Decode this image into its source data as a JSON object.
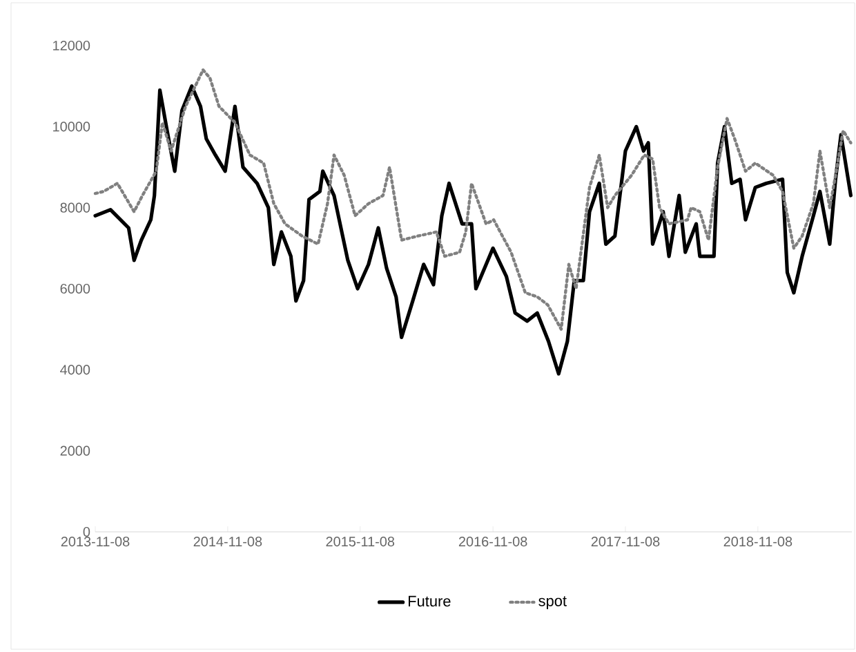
{
  "chart_data": {
    "type": "line",
    "xlim": [
      "2013-11-08",
      "2019-07-25"
    ],
    "xticks": [
      "2013-11-08",
      "2014-11-08",
      "2015-11-08",
      "2016-11-08",
      "2017-11-08",
      "2018-11-08"
    ],
    "ylim": [
      0,
      12000
    ],
    "yticks": [
      0,
      2000,
      4000,
      6000,
      8000,
      10000,
      12000
    ],
    "grid": false,
    "legend": "bottom",
    "marker": "none",
    "series": [
      {
        "name": "Future",
        "color": "#000000",
        "line_style": "solid",
        "x": [
          "2013-11-08",
          "2013-12-20",
          "2014-02-08",
          "2014-02-23",
          "2014-03-15",
          "2014-04-10",
          "2014-04-20",
          "2014-05-05",
          "2014-05-25",
          "2014-06-15",
          "2014-07-05",
          "2014-08-01",
          "2014-08-25",
          "2014-09-10",
          "2014-10-05",
          "2014-11-01",
          "2014-11-28",
          "2014-12-20",
          "2015-01-28",
          "2015-02-28",
          "2015-03-15",
          "2015-04-05",
          "2015-05-01",
          "2015-05-15",
          "2015-06-05",
          "2015-06-20",
          "2015-07-20",
          "2015-07-28",
          "2015-08-28",
          "2015-10-05",
          "2015-11-01",
          "2015-12-01",
          "2015-12-28",
          "2016-01-20",
          "2016-02-15",
          "2016-03-01",
          "2016-04-01",
          "2016-05-01",
          "2016-05-28",
          "2016-06-20",
          "2016-07-10",
          "2016-08-15",
          "2016-09-10",
          "2016-09-22",
          "2016-11-08",
          "2016-12-15",
          "2017-01-08",
          "2017-02-10",
          "2017-03-10",
          "2017-04-10",
          "2017-05-08",
          "2017-06-01",
          "2017-06-20",
          "2017-07-15",
          "2017-08-01",
          "2017-08-28",
          "2017-09-15",
          "2017-10-10",
          "2017-11-08",
          "2017-12-08",
          "2017-12-28",
          "2018-01-10",
          "2018-01-22",
          "2018-02-20",
          "2018-03-08",
          "2018-04-05",
          "2018-04-22",
          "2018-05-22",
          "2018-06-01",
          "2018-07-10",
          "2018-07-20",
          "2018-08-08",
          "2018-08-28",
          "2018-09-20",
          "2018-10-05",
          "2018-11-01",
          "2018-12-01",
          "2019-01-15",
          "2019-01-28",
          "2019-02-15",
          "2019-03-10",
          "2019-04-10",
          "2019-04-28",
          "2019-05-25",
          "2019-06-10",
          "2019-06-25",
          "2019-07-22"
        ],
        "values": [
          7800,
          7950,
          7500,
          6700,
          7200,
          7700,
          8300,
          10900,
          9900,
          8900,
          10400,
          11000,
          10500,
          9700,
          9300,
          8900,
          10500,
          9000,
          8600,
          8000,
          6600,
          7400,
          6800,
          5700,
          6200,
          8200,
          8400,
          8900,
          8300,
          6700,
          6000,
          6600,
          7500,
          6500,
          5800,
          4800,
          5700,
          6600,
          6100,
          7800,
          8600,
          7600,
          7600,
          6000,
          7000,
          6300,
          5400,
          5200,
          5400,
          4700,
          3900,
          4700,
          6200,
          6200,
          7900,
          8600,
          7100,
          7300,
          9400,
          10000,
          9400,
          9600,
          7100,
          7900,
          6800,
          8300,
          6900,
          7600,
          6800,
          6800,
          9100,
          10000,
          8600,
          8700,
          7700,
          8500,
          8600,
          8700,
          6400,
          5900,
          6800,
          7800,
          8400,
          7100,
          8700,
          9800,
          8300
        ]
      },
      {
        "name": "spot",
        "color": "#808080",
        "line_style": "dotted",
        "x": [
          "2013-11-08",
          "2013-12-01",
          "2014-01-08",
          "2014-02-23",
          "2014-03-18",
          "2014-04-25",
          "2014-05-12",
          "2014-06-05",
          "2014-07-15",
          "2014-09-01",
          "2014-09-20",
          "2014-10-15",
          "2014-11-28",
          "2015-01-08",
          "2015-02-15",
          "2015-03-15",
          "2015-04-15",
          "2015-06-01",
          "2015-07-15",
          "2015-08-10",
          "2015-08-28",
          "2015-09-25",
          "2015-10-25",
          "2015-12-01",
          "2016-01-10",
          "2016-01-28",
          "2016-03-01",
          "2016-04-15",
          "2016-06-05",
          "2016-06-28",
          "2016-08-08",
          "2016-08-25",
          "2016-09-10",
          "2016-10-20",
          "2016-11-10",
          "2016-12-28",
          "2017-02-05",
          "2017-03-10",
          "2017-04-08",
          "2017-05-15",
          "2017-06-05",
          "2017-06-25",
          "2017-08-01",
          "2017-08-28",
          "2017-09-20",
          "2017-10-10",
          "2017-11-25",
          "2017-12-30",
          "2018-01-22",
          "2018-02-10",
          "2018-03-08",
          "2018-04-28",
          "2018-05-08",
          "2018-06-01",
          "2018-06-25",
          "2018-07-20",
          "2018-08-15",
          "2018-09-05",
          "2018-10-05",
          "2018-11-01",
          "2018-12-20",
          "2019-01-15",
          "2019-02-15",
          "2019-03-10",
          "2019-04-10",
          "2019-04-28",
          "2019-05-25",
          "2019-06-10",
          "2019-07-01",
          "2019-07-22"
        ],
        "values": [
          8350,
          8400,
          8600,
          7900,
          8300,
          8900,
          10100,
          9400,
          10500,
          11400,
          11200,
          10500,
          10100,
          9300,
          9100,
          8100,
          7600,
          7300,
          7100,
          8100,
          9300,
          8800,
          7800,
          8100,
          8300,
          9000,
          7200,
          7300,
          7400,
          6800,
          6900,
          7400,
          8600,
          7600,
          7700,
          6900,
          5900,
          5800,
          5600,
          5000,
          6600,
          6000,
          8500,
          9300,
          8000,
          8300,
          8800,
          9300,
          9200,
          8000,
          7600,
          7700,
          8000,
          7900,
          7200,
          9000,
          10200,
          9700,
          8900,
          9100,
          8800,
          8400,
          7000,
          7300,
          8100,
          9400,
          8000,
          8800,
          9900,
          9600
        ]
      }
    ]
  }
}
